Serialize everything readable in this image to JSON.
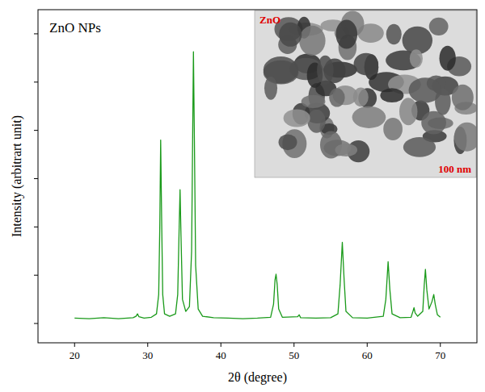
{
  "chart_data": {
    "type": "line",
    "title": "ZnO NPs",
    "x_label": "2θ (degree)",
    "y_label": "Intensity (arbitrart unit)",
    "annotations": [
      "ZnO",
      "100 nm"
    ],
    "color": "#1a9a1a",
    "grid": false,
    "tick_labels": "x",
    "xlim": [
      15,
      75
    ],
    "xticks": [
      20,
      30,
      40,
      50,
      60,
      70
    ],
    "ylim": [
      -4,
      65
    ],
    "yticks": [
      0,
      10,
      20,
      30,
      40,
      50,
      60
    ],
    "x": [
      20,
      22,
      24,
      26,
      28,
      28.4,
      28.6,
      28.8,
      29.5,
      30.5,
      31.2,
      31.5,
      31.65,
      31.77,
      31.9,
      32.05,
      32.3,
      33,
      33.8,
      34.1,
      34.3,
      34.42,
      34.55,
      34.75,
      35.2,
      35.7,
      36.0,
      36.15,
      36.25,
      36.38,
      36.55,
      36.9,
      37.5,
      39,
      41,
      43,
      45,
      46.8,
      47.2,
      47.4,
      47.54,
      47.7,
      47.9,
      48.4,
      50.5,
      50.7,
      50.9,
      53,
      55,
      56.0,
      56.3,
      56.6,
      56.85,
      57.1,
      58,
      60,
      62.2,
      62.55,
      62.86,
      63.1,
      63.4,
      64.5,
      66.0,
      66.25,
      66.4,
      66.55,
      66.9,
      67.6,
      67.8,
      67.96,
      68.15,
      68.45,
      68.85,
      69.1,
      69.3,
      69.6,
      70
    ],
    "values": [
      1.1,
      1.0,
      1.2,
      1.0,
      1.2,
      1.5,
      2.0,
      1.4,
      1.1,
      1.3,
      2.0,
      6,
      20,
      38,
      22,
      6,
      2,
      1.5,
      2,
      6,
      20,
      27.7,
      18,
      5,
      2.5,
      3.5,
      15,
      40,
      56.3,
      38,
      12,
      3,
      1.5,
      1.2,
      1.1,
      1.0,
      1.1,
      1.3,
      4,
      9,
      10.2,
      8,
      3,
      1.3,
      1.4,
      1.8,
      1.2,
      1.1,
      1.2,
      2,
      8,
      16.8,
      9,
      2.5,
      1.2,
      1.1,
      1.5,
      5,
      12.8,
      7,
      2,
      1.2,
      1.3,
      2.5,
      3.3,
      2.2,
      1.5,
      2.5,
      8,
      11.2,
      7,
      3,
      4.5,
      6,
      4,
      1.8,
      1.3
    ]
  }
}
